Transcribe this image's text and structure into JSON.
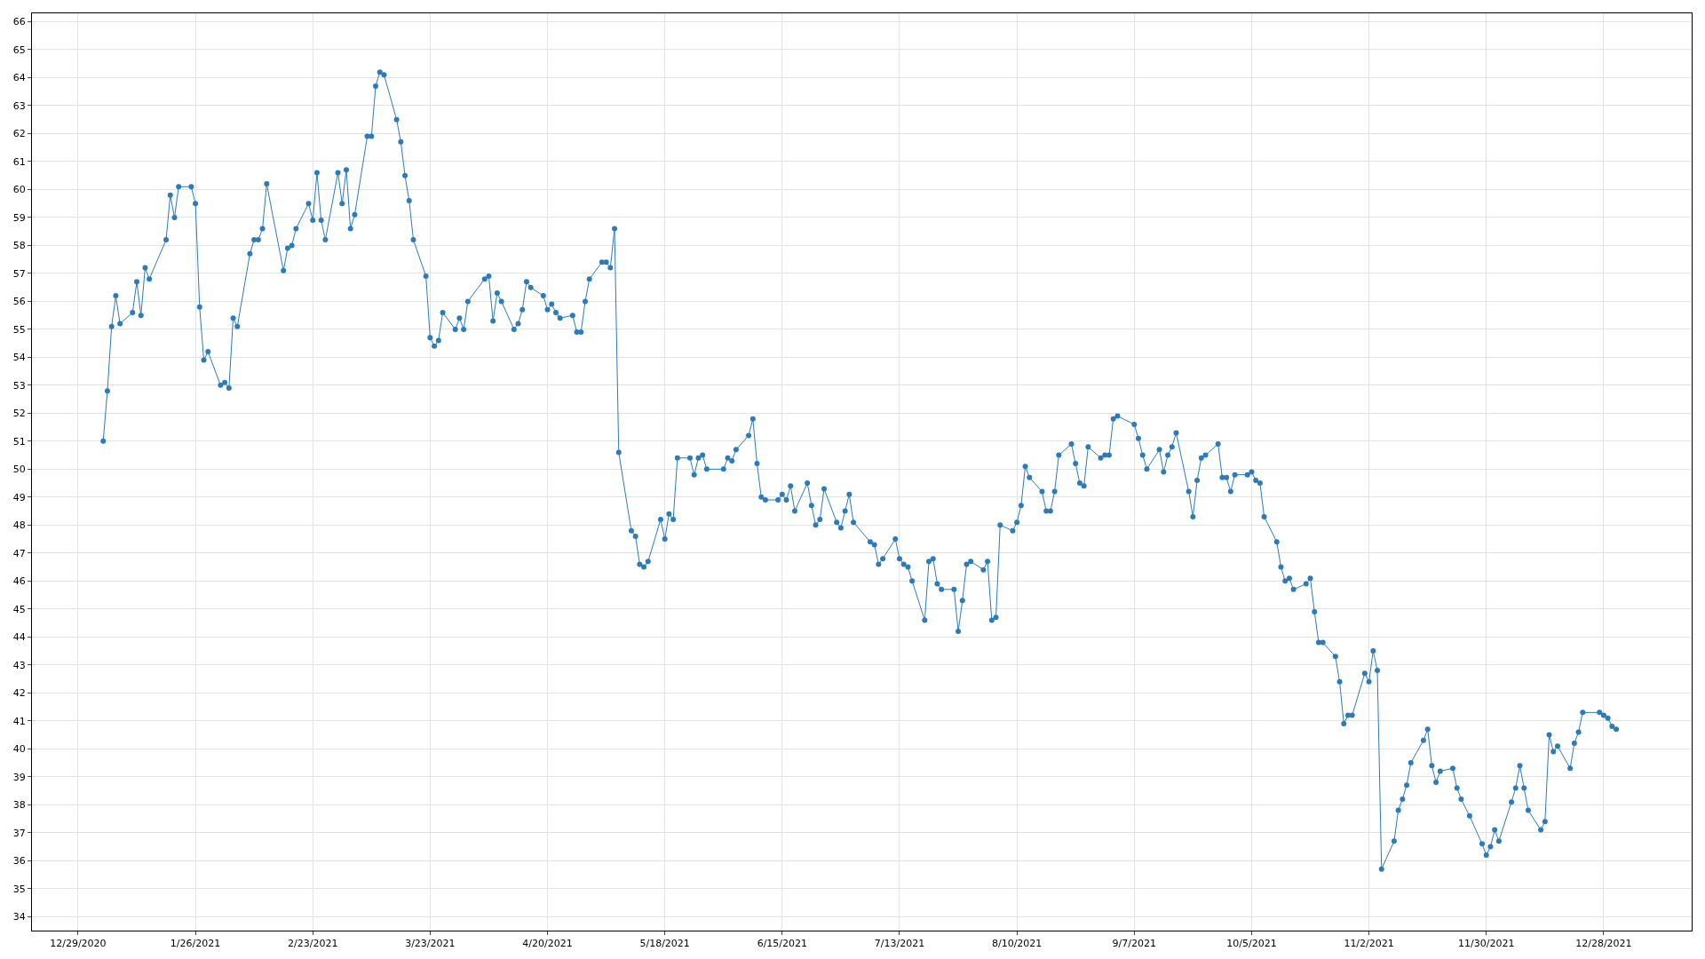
{
  "chart_data": {
    "type": "line",
    "marker": "circle",
    "line_style": "solid",
    "grid": true,
    "xlim": [
      "2020-12-18",
      "2022-01-18"
    ],
    "xticks": [
      {
        "value": "2020-12-29",
        "label": "12/29/2020"
      },
      {
        "value": "2021-01-26",
        "label": "1/26/2021"
      },
      {
        "value": "2021-02-23",
        "label": "2/23/2021"
      },
      {
        "value": "2021-03-23",
        "label": "3/23/2021"
      },
      {
        "value": "2021-04-20",
        "label": "4/20/2021"
      },
      {
        "value": "2021-05-18",
        "label": "5/18/2021"
      },
      {
        "value": "2021-06-15",
        "label": "6/15/2021"
      },
      {
        "value": "2021-07-13",
        "label": "7/13/2021"
      },
      {
        "value": "2021-08-10",
        "label": "8/10/2021"
      },
      {
        "value": "2021-09-07",
        "label": "9/7/2021"
      },
      {
        "value": "2021-10-05",
        "label": "10/5/2021"
      },
      {
        "value": "2021-11-02",
        "label": "11/2/2021"
      },
      {
        "value": "2021-11-30",
        "label": "11/30/2021"
      },
      {
        "value": "2021-12-28",
        "label": "12/28/2021"
      }
    ],
    "ylim": [
      33.5,
      66.3
    ],
    "yticks": [
      34,
      35,
      36,
      37,
      38,
      39,
      40,
      41,
      42,
      43,
      44,
      45,
      46,
      47,
      48,
      49,
      50,
      51,
      52,
      53,
      54,
      55,
      56,
      57,
      58,
      59,
      60,
      61,
      62,
      63,
      64,
      65,
      66
    ],
    "x": [
      "2021-01-04",
      "2021-01-05",
      "2021-01-06",
      "2021-01-07",
      "2021-01-08",
      "2021-01-11",
      "2021-01-12",
      "2021-01-13",
      "2021-01-14",
      "2021-01-15",
      "2021-01-19",
      "2021-01-20",
      "2021-01-21",
      "2021-01-22",
      "2021-01-25",
      "2021-01-26",
      "2021-01-27",
      "2021-01-28",
      "2021-01-29",
      "2021-02-01",
      "2021-02-02",
      "2021-02-03",
      "2021-02-04",
      "2021-02-05",
      "2021-02-08",
      "2021-02-09",
      "2021-02-10",
      "2021-02-11",
      "2021-02-12",
      "2021-02-16",
      "2021-02-17",
      "2021-02-18",
      "2021-02-19",
      "2021-02-22",
      "2021-02-23",
      "2021-02-24",
      "2021-02-25",
      "2021-02-26",
      "2021-03-01",
      "2021-03-02",
      "2021-03-03",
      "2021-03-04",
      "2021-03-05",
      "2021-03-08",
      "2021-03-09",
      "2021-03-10",
      "2021-03-11",
      "2021-03-12",
      "2021-03-15",
      "2021-03-16",
      "2021-03-17",
      "2021-03-18",
      "2021-03-19",
      "2021-03-22",
      "2021-03-23",
      "2021-03-24",
      "2021-03-25",
      "2021-03-26",
      "2021-03-29",
      "2021-03-30",
      "2021-03-31",
      "2021-04-01",
      "2021-04-05",
      "2021-04-06",
      "2021-04-07",
      "2021-04-08",
      "2021-04-09",
      "2021-04-12",
      "2021-04-13",
      "2021-04-14",
      "2021-04-15",
      "2021-04-16",
      "2021-04-19",
      "2021-04-20",
      "2021-04-21",
      "2021-04-22",
      "2021-04-23",
      "2021-04-26",
      "2021-04-27",
      "2021-04-28",
      "2021-04-29",
      "2021-04-30",
      "2021-05-03",
      "2021-05-04",
      "2021-05-05",
      "2021-05-06",
      "2021-05-07",
      "2021-05-10",
      "2021-05-11",
      "2021-05-12",
      "2021-05-13",
      "2021-05-14",
      "2021-05-17",
      "2021-05-18",
      "2021-05-19",
      "2021-05-20",
      "2021-05-21",
      "2021-05-24",
      "2021-05-25",
      "2021-05-26",
      "2021-05-27",
      "2021-05-28",
      "2021-06-01",
      "2021-06-02",
      "2021-06-03",
      "2021-06-04",
      "2021-06-07",
      "2021-06-08",
      "2021-06-09",
      "2021-06-10",
      "2021-06-11",
      "2021-06-14",
      "2021-06-15",
      "2021-06-16",
      "2021-06-17",
      "2021-06-18",
      "2021-06-21",
      "2021-06-22",
      "2021-06-23",
      "2021-06-24",
      "2021-06-25",
      "2021-06-28",
      "2021-06-29",
      "2021-06-30",
      "2021-07-01",
      "2021-07-02",
      "2021-07-06",
      "2021-07-07",
      "2021-07-08",
      "2021-07-09",
      "2021-07-12",
      "2021-07-13",
      "2021-07-14",
      "2021-07-15",
      "2021-07-16",
      "2021-07-19",
      "2021-07-20",
      "2021-07-21",
      "2021-07-22",
      "2021-07-23",
      "2021-07-26",
      "2021-07-27",
      "2021-07-28",
      "2021-07-29",
      "2021-07-30",
      "2021-08-02",
      "2021-08-03",
      "2021-08-04",
      "2021-08-05",
      "2021-08-06",
      "2021-08-09",
      "2021-08-10",
      "2021-08-11",
      "2021-08-12",
      "2021-08-13",
      "2021-08-16",
      "2021-08-17",
      "2021-08-18",
      "2021-08-19",
      "2021-08-20",
      "2021-08-23",
      "2021-08-24",
      "2021-08-25",
      "2021-08-26",
      "2021-08-27",
      "2021-08-30",
      "2021-08-31",
      "2021-09-01",
      "2021-09-02",
      "2021-09-03",
      "2021-09-07",
      "2021-09-08",
      "2021-09-09",
      "2021-09-10",
      "2021-09-13",
      "2021-09-14",
      "2021-09-15",
      "2021-09-16",
      "2021-09-17",
      "2021-09-20",
      "2021-09-21",
      "2021-09-22",
      "2021-09-23",
      "2021-09-24",
      "2021-09-27",
      "2021-09-28",
      "2021-09-29",
      "2021-09-30",
      "2021-10-01",
      "2021-10-04",
      "2021-10-05",
      "2021-10-06",
      "2021-10-07",
      "2021-10-08",
      "2021-10-11",
      "2021-10-12",
      "2021-10-13",
      "2021-10-14",
      "2021-10-15",
      "2021-10-18",
      "2021-10-19",
      "2021-10-20",
      "2021-10-21",
      "2021-10-22",
      "2021-10-25",
      "2021-10-26",
      "2021-10-27",
      "2021-10-28",
      "2021-10-29",
      "2021-11-01",
      "2021-11-02",
      "2021-11-03",
      "2021-11-04",
      "2021-11-05",
      "2021-11-08",
      "2021-11-09",
      "2021-11-10",
      "2021-11-11",
      "2021-11-12",
      "2021-11-15",
      "2021-11-16",
      "2021-11-17",
      "2021-11-18",
      "2021-11-19",
      "2021-11-22",
      "2021-11-23",
      "2021-11-24",
      "2021-11-26",
      "2021-11-29",
      "2021-11-30",
      "2021-12-01",
      "2021-12-02",
      "2021-12-03",
      "2021-12-06",
      "2021-12-07",
      "2021-12-08",
      "2021-12-09",
      "2021-12-10",
      "2021-12-13",
      "2021-12-14",
      "2021-12-15",
      "2021-12-16",
      "2021-12-17",
      "2021-12-20",
      "2021-12-21",
      "2021-12-22",
      "2021-12-23",
      "2021-12-27",
      "2021-12-28",
      "2021-12-29",
      "2021-12-30",
      "2021-12-31"
    ],
    "series": [
      {
        "color": "#2b7bba",
        "values": [
          51.0,
          52.8,
          55.1,
          56.2,
          55.2,
          55.6,
          56.7,
          55.5,
          57.2,
          56.8,
          58.2,
          59.8,
          59.0,
          60.1,
          60.1,
          59.5,
          55.8,
          53.9,
          54.2,
          53.0,
          53.1,
          52.9,
          55.4,
          55.1,
          57.7,
          58.2,
          58.2,
          58.6,
          60.2,
          57.1,
          57.9,
          58.0,
          58.6,
          59.5,
          58.9,
          60.6,
          58.9,
          58.2,
          60.6,
          59.5,
          60.7,
          58.6,
          59.1,
          61.9,
          61.9,
          63.7,
          64.2,
          64.1,
          62.5,
          61.7,
          60.5,
          59.6,
          58.2,
          56.9,
          54.7,
          54.4,
          54.6,
          55.6,
          55.0,
          55.4,
          55.0,
          56.0,
          56.8,
          56.9,
          55.3,
          56.3,
          56.0,
          55.0,
          55.2,
          55.7,
          56.7,
          56.5,
          56.2,
          55.7,
          55.9,
          55.6,
          55.4,
          55.5,
          54.9,
          54.9,
          56.0,
          56.8,
          57.4,
          57.4,
          57.2,
          58.6,
          50.6,
          47.8,
          47.6,
          46.6,
          46.5,
          46.7,
          48.2,
          47.5,
          48.4,
          48.2,
          50.4,
          50.4,
          49.8,
          50.4,
          50.5,
          50.0,
          50.0,
          50.4,
          50.3,
          50.7,
          51.2,
          51.8,
          50.2,
          49.0,
          48.9,
          48.9,
          49.1,
          48.9,
          49.4,
          48.5,
          49.5,
          48.7,
          48.0,
          48.2,
          49.3,
          48.1,
          47.9,
          48.5,
          49.1,
          48.1,
          47.4,
          47.3,
          46.6,
          46.8,
          47.5,
          46.8,
          46.6,
          46.5,
          46.0,
          44.6,
          46.7,
          46.8,
          45.9,
          45.7,
          45.7,
          44.2,
          45.3,
          46.6,
          46.7,
          46.4,
          46.7,
          44.6,
          44.7,
          48.0,
          47.8,
          48.1,
          48.7,
          50.1,
          49.7,
          49.2,
          48.5,
          48.5,
          49.2,
          50.5,
          50.9,
          50.2,
          49.5,
          49.4,
          50.8,
          50.4,
          50.5,
          50.5,
          51.8,
          51.9,
          51.6,
          51.1,
          50.5,
          50.0,
          50.7,
          49.9,
          50.5,
          50.8,
          51.3,
          49.2,
          48.3,
          49.6,
          50.4,
          50.5,
          50.9,
          49.7,
          49.7,
          49.2,
          49.8,
          49.8,
          49.9,
          49.6,
          49.5,
          48.3,
          47.4,
          46.5,
          46.0,
          46.1,
          45.7,
          45.9,
          46.1,
          44.9,
          43.8,
          43.8,
          43.3,
          42.4,
          40.9,
          41.2,
          41.2,
          42.7,
          42.4,
          43.5,
          42.8,
          35.7,
          36.7,
          37.8,
          38.2,
          38.7,
          39.5,
          40.3,
          40.7,
          39.4,
          38.8,
          39.2,
          39.3,
          38.6,
          38.2,
          37.6,
          36.6,
          36.2,
          36.5,
          37.1,
          36.7,
          38.1,
          38.6,
          39.4,
          38.6,
          37.8,
          37.1,
          37.4,
          40.5,
          39.9,
          40.1,
          39.3,
          40.2,
          40.6,
          41.3,
          41.3,
          41.2,
          41.1,
          40.8,
          40.7
        ]
      }
    ]
  }
}
